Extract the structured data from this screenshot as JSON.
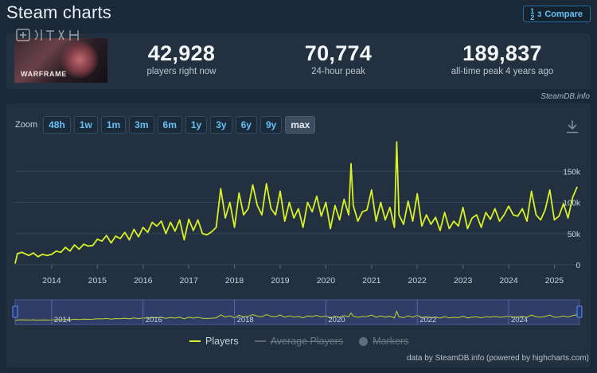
{
  "title": "Steam charts",
  "compare": {
    "label": "Compare",
    "icon": "compare-icon",
    "icon_glyph_top": "1",
    "icon_glyph_mid": "2",
    "icon_glyph_right": "3"
  },
  "game": {
    "name": "WARFRAME"
  },
  "stats": [
    {
      "value": "42,928",
      "label": "players right now"
    },
    {
      "value": "70,774",
      "label": "24-hour peak"
    },
    {
      "value": "189,837",
      "label": "all-time peak 4 years ago"
    }
  ],
  "source_link": "SteamDB.info",
  "zoom": {
    "label": "Zoom",
    "options": [
      "48h",
      "1w",
      "1m",
      "3m",
      "6m",
      "1y",
      "3y",
      "6y",
      "9y",
      "max"
    ],
    "active": "max"
  },
  "legend": {
    "players": "Players",
    "average": "Average Players",
    "markers": "Markers"
  },
  "credits": "data by SteamDB.info (powered by highcharts.com)",
  "colors": {
    "series": "#d8f026",
    "background": "#1b2838",
    "panel": "#22303f",
    "accent": "#66c0f4"
  },
  "chart_data": {
    "type": "line",
    "series": [
      {
        "name": "Players",
        "x": [
          2013.2,
          2013.25,
          2013.35,
          2013.5,
          2013.6,
          2013.7,
          2013.8,
          2013.9,
          2014.0,
          2014.1,
          2014.2,
          2014.3,
          2014.4,
          2014.5,
          2014.6,
          2014.7,
          2014.8,
          2014.9,
          2015.0,
          2015.1,
          2015.2,
          2015.3,
          2015.4,
          2015.5,
          2015.6,
          2015.7,
          2015.8,
          2015.9,
          2016.0,
          2016.1,
          2016.2,
          2016.3,
          2016.4,
          2016.5,
          2016.6,
          2016.7,
          2016.8,
          2016.9,
          2017.0,
          2017.1,
          2017.2,
          2017.3,
          2017.4,
          2017.5,
          2017.6,
          2017.7,
          2017.8,
          2017.9,
          2018.0,
          2018.1,
          2018.2,
          2018.3,
          2018.4,
          2018.5,
          2018.6,
          2018.7,
          2018.8,
          2018.9,
          2019.0,
          2019.1,
          2019.2,
          2019.3,
          2019.4,
          2019.5,
          2019.6,
          2019.7,
          2019.8,
          2019.9,
          2020.0,
          2020.1,
          2020.2,
          2020.3,
          2020.4,
          2020.5,
          2020.55,
          2020.6,
          2020.7,
          2020.8,
          2020.9,
          2021.0,
          2021.1,
          2021.2,
          2021.3,
          2021.4,
          2021.5,
          2021.55,
          2021.6,
          2021.7,
          2021.8,
          2021.9,
          2022.0,
          2022.1,
          2022.2,
          2022.3,
          2022.4,
          2022.5,
          2022.6,
          2022.7,
          2022.8,
          2022.9,
          2023.0,
          2023.1,
          2023.2,
          2023.3,
          2023.4,
          2023.5,
          2023.6,
          2023.7,
          2023.8,
          2023.9,
          2024.0,
          2024.1,
          2024.2,
          2024.3,
          2024.4,
          2024.5,
          2024.6,
          2024.7,
          2024.8,
          2024.9,
          2025.0,
          2025.1,
          2025.2,
          2025.3,
          2025.4,
          2025.5
        ],
        "values": [
          2000,
          18000,
          20000,
          15000,
          19000,
          13000,
          17000,
          15000,
          17000,
          22000,
          20000,
          28000,
          22000,
          32000,
          25000,
          33000,
          30000,
          31000,
          41000,
          38000,
          47000,
          35000,
          46000,
          42000,
          52000,
          40000,
          57000,
          45000,
          60000,
          52000,
          68000,
          62000,
          70000,
          50000,
          68000,
          54000,
          72000,
          40000,
          73000,
          55000,
          72000,
          50000,
          48000,
          53000,
          60000,
          122000,
          75000,
          100000,
          60000,
          115000,
          80000,
          90000,
          128000,
          95000,
          80000,
          130000,
          90000,
          80000,
          118000,
          70000,
          100000,
          75000,
          90000,
          60000,
          100000,
          85000,
          110000,
          78000,
          100000,
          58000,
          95000,
          72000,
          105000,
          80000,
          162000,
          95000,
          70000,
          85000,
          88000,
          120000,
          70000,
          100000,
          72000,
          92000,
          60000,
          197000,
          80000,
          65000,
          102000,
          70000,
          114000,
          62000,
          80000,
          65000,
          76000,
          55000,
          84000,
          58000,
          70000,
          62000,
          92000,
          58000,
          75000,
          80000,
          60000,
          84000,
          73000,
          90000,
          70000,
          80000,
          94000,
          80000,
          78000,
          90000,
          70000,
          118000,
          80000,
          72000,
          88000,
          120000,
          72000,
          78000,
          98000,
          75000,
          108000,
          125000
        ]
      }
    ],
    "x_ticks": [
      "2014",
      "2015",
      "2016",
      "2017",
      "2018",
      "2019",
      "2020",
      "2021",
      "2022",
      "2023",
      "2024",
      "2025"
    ],
    "y_ticks": [
      "0",
      "50k",
      "100k",
      "150k"
    ],
    "y_range": [
      0,
      200000
    ],
    "x_range": [
      2013.2,
      2025.55
    ],
    "navigator_ticks": [
      "2014",
      "2016",
      "2018",
      "2020",
      "2022",
      "2024"
    ],
    "grid": true,
    "legend_position": "bottom-center"
  }
}
